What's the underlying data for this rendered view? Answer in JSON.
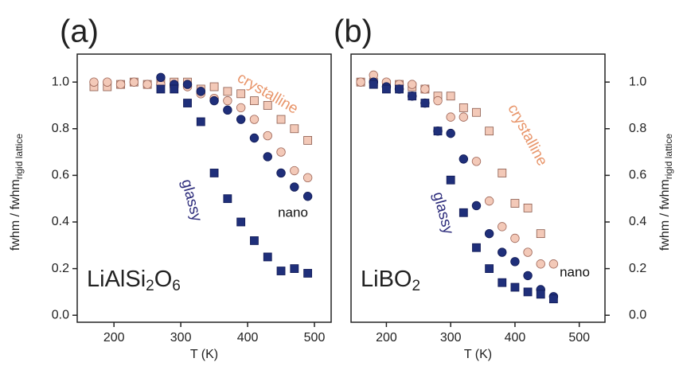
{
  "chart_data": [
    {
      "type": "scatter",
      "panel_label": "(a)",
      "compound": [
        "LiAlSi",
        "2",
        "O",
        "6"
      ],
      "xlabel": "T (K)",
      "ylabel": "fwhm / fwhm",
      "ylabel_sub": "rigid lattice",
      "y_axis_side": "left",
      "xlim": [
        145,
        525
      ],
      "ylim": [
        -0.03,
        1.12
      ],
      "xticks": [
        200,
        300,
        400,
        500
      ],
      "yticks": [
        {
          "value": 0,
          "label": "0.0"
        },
        0.2,
        0.4,
        0.6,
        0.8,
        {
          "value": 1,
          "label": "1.0"
        }
      ],
      "annotations": [
        {
          "text": "crystalline",
          "color": "#e8956a"
        },
        {
          "text": "glassy",
          "color": "#2b2a7a"
        },
        {
          "text": "nano",
          "color": "#111111"
        }
      ],
      "series": [
        {
          "marker": "square",
          "color": "#f3c9b8",
          "x": [
            170,
            190,
            210,
            230,
            250,
            270,
            290,
            310,
            330,
            350,
            370,
            390,
            410,
            430,
            450,
            470,
            490
          ],
          "values": [
            0.98,
            0.98,
            0.99,
            1.0,
            0.99,
            1.0,
            1.0,
            1.0,
            0.97,
            0.98,
            0.96,
            0.95,
            0.92,
            0.9,
            0.84,
            0.8,
            0.75
          ]
        },
        {
          "marker": "circle",
          "color": "#f3c9b8",
          "x": [
            170,
            190,
            210,
            230,
            250,
            270,
            290,
            310,
            330,
            350,
            370,
            390,
            410,
            430,
            450,
            470,
            490
          ],
          "values": [
            1.0,
            1.0,
            0.99,
            1.0,
            0.99,
            0.99,
            0.98,
            0.98,
            0.95,
            0.93,
            0.92,
            0.89,
            0.84,
            0.77,
            0.7,
            0.62,
            0.59
          ]
        },
        {
          "marker": "circle",
          "color": "#1f2f7a",
          "x": [
            270,
            290,
            310,
            330,
            350,
            370,
            390,
            410,
            430,
            450,
            470,
            490
          ],
          "values": [
            1.02,
            0.99,
            0.99,
            0.96,
            0.92,
            0.88,
            0.84,
            0.76,
            0.68,
            0.61,
            0.55,
            0.51
          ]
        },
        {
          "marker": "square",
          "color": "#1f2f7a",
          "x": [
            270,
            290,
            310,
            330,
            350,
            370,
            390,
            410,
            430,
            450,
            470,
            490
          ],
          "values": [
            0.97,
            0.97,
            0.91,
            0.83,
            0.61,
            0.5,
            0.4,
            0.32,
            0.25,
            0.19,
            0.2,
            0.18
          ]
        }
      ]
    },
    {
      "type": "scatter",
      "panel_label": "(b)",
      "compound": [
        "LiBO",
        "2"
      ],
      "xlabel": "T (K)",
      "ylabel": "fwhm / fwhm",
      "ylabel_sub": "rigid lattice",
      "y_axis_side": "right",
      "xlim": [
        145,
        540
      ],
      "ylim": [
        -0.03,
        1.12
      ],
      "xticks": [
        200,
        300,
        400,
        500
      ],
      "yticks": [
        {
          "value": 0,
          "label": "0.0"
        },
        0.2,
        0.4,
        0.6,
        0.8,
        {
          "value": 1,
          "label": "1.0"
        }
      ],
      "annotations": [
        {
          "text": "crystalline",
          "color": "#e8956a"
        },
        {
          "text": "glassy",
          "color": "#2b2a7a"
        },
        {
          "text": "nano",
          "color": "#111111"
        }
      ],
      "series": [
        {
          "marker": "square",
          "color": "#f3c9b8",
          "x": [
            160,
            180,
            200,
            220,
            240,
            260,
            280,
            300,
            320,
            340,
            360,
            380,
            400,
            420,
            440
          ],
          "values": [
            1.0,
            1.0,
            0.99,
            0.99,
            0.98,
            0.97,
            0.94,
            0.94,
            0.89,
            0.87,
            0.79,
            0.61,
            0.48,
            0.46,
            0.35
          ]
        },
        {
          "marker": "circle",
          "color": "#f3c9b8",
          "x": [
            160,
            180,
            200,
            220,
            240,
            260,
            280,
            300,
            320,
            340,
            360,
            380,
            400,
            420,
            440,
            460
          ],
          "values": [
            1.0,
            1.03,
            1.0,
            0.99,
            0.99,
            0.97,
            0.92,
            0.85,
            0.85,
            0.66,
            0.49,
            0.38,
            0.33,
            0.27,
            0.22,
            0.22
          ]
        },
        {
          "marker": "circle",
          "color": "#1f2f7a",
          "x": [
            180,
            200,
            220,
            240,
            260,
            280,
            300,
            320,
            340,
            360,
            380,
            400,
            420,
            440,
            460
          ],
          "values": [
            1.0,
            0.98,
            0.97,
            0.94,
            0.91,
            0.79,
            0.78,
            0.67,
            0.47,
            0.35,
            0.27,
            0.23,
            0.17,
            0.11,
            0.08
          ]
        },
        {
          "marker": "square",
          "color": "#1f2f7a",
          "x": [
            180,
            200,
            220,
            240,
            260,
            280,
            300,
            320,
            340,
            360,
            380,
            400,
            420,
            440,
            460
          ],
          "values": [
            0.99,
            0.97,
            0.97,
            0.94,
            0.91,
            0.79,
            0.58,
            0.44,
            0.29,
            0.2,
            0.14,
            0.12,
            0.1,
            0.09,
            0.07
          ]
        }
      ]
    }
  ]
}
